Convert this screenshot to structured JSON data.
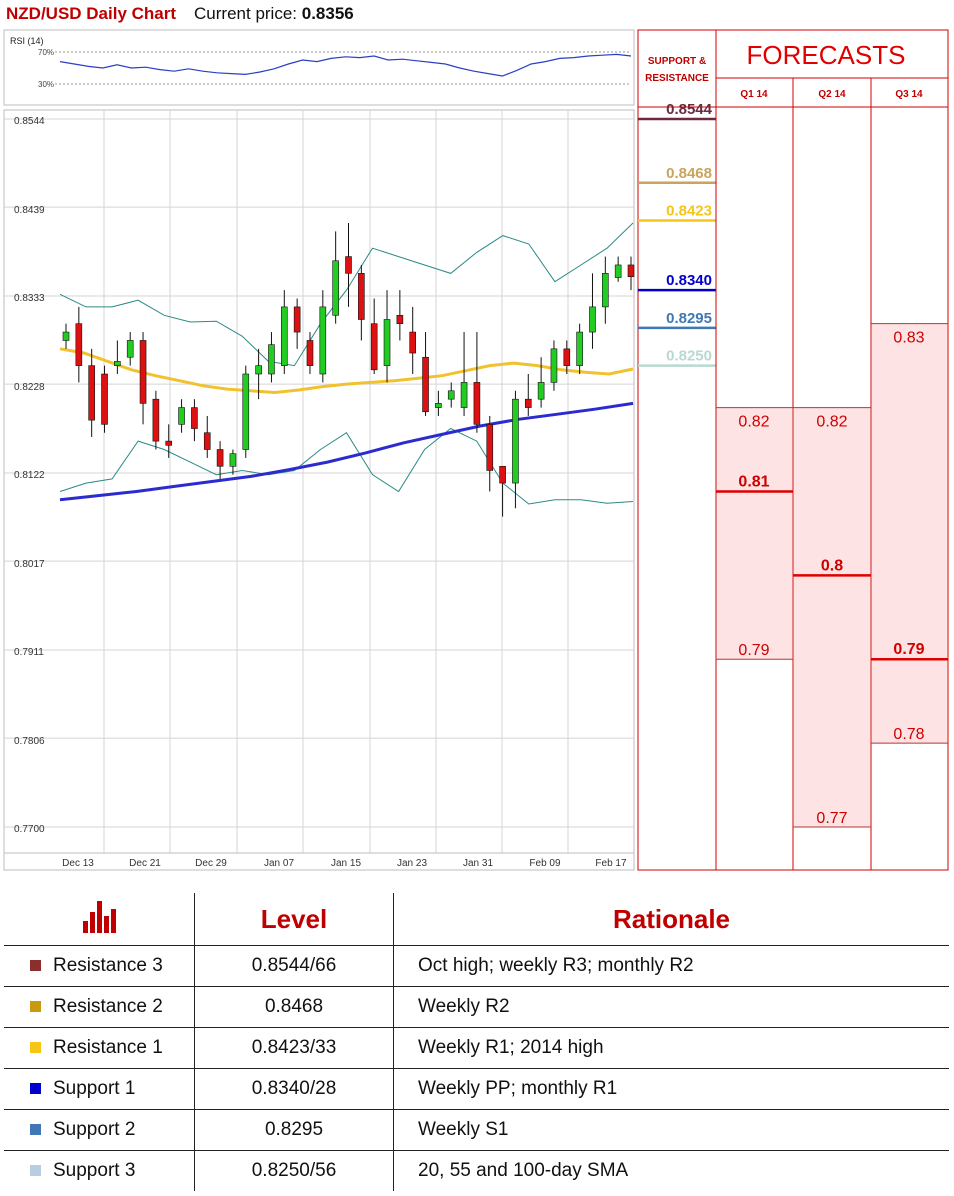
{
  "header": {
    "title": "NZD/USD Daily Chart",
    "price_label": "Current price:",
    "price_value": "0.8356"
  },
  "colors": {
    "red": "#c00000",
    "r3": "#8b2e2e",
    "r2": "#c89b0e",
    "r1": "#f5c518",
    "s1": "#0000cc",
    "s2": "#3f78b5",
    "s3": "#b8cde2",
    "sma_short": "#f2c12e",
    "sma_long": "#2b2bd0",
    "band": "#2a8a86"
  },
  "chart_data": {
    "type": "candlestick",
    "y_ticks": [
      "0.8544",
      "0.8439",
      "0.8333",
      "0.8228",
      "0.8122",
      "0.8017",
      "0.7911",
      "0.7806",
      "0.7700"
    ],
    "x_ticks": [
      "Dec 13",
      "Dec 21",
      "Dec 29",
      "Jan 07",
      "Jan 15",
      "Jan 23",
      "Jan 31",
      "Feb 09",
      "Feb 17"
    ],
    "ylim": [
      0.77,
      0.8544
    ],
    "rsi": {
      "label": "RSI (14)",
      "levels": [
        "70%",
        "30%"
      ],
      "values": [
        58,
        55,
        52,
        50,
        54,
        50,
        51,
        48,
        46,
        49,
        46,
        44,
        43,
        42,
        45,
        49,
        55,
        60,
        58,
        62,
        64,
        63,
        65,
        60,
        61,
        59,
        57,
        55,
        50,
        46,
        43,
        40,
        47,
        55,
        58,
        62,
        63,
        65,
        66,
        67,
        65
      ]
    },
    "candles": [
      [
        0.828,
        0.829,
        0.827,
        0.83
      ],
      [
        0.83,
        0.825,
        0.823,
        0.832
      ],
      [
        0.825,
        0.8185,
        0.8165,
        0.827
      ],
      [
        0.824,
        0.818,
        0.817,
        0.825
      ],
      [
        0.825,
        0.8255,
        0.824,
        0.828
      ],
      [
        0.826,
        0.828,
        0.825,
        0.829
      ],
      [
        0.828,
        0.8205,
        0.818,
        0.829
      ],
      [
        0.821,
        0.816,
        0.815,
        0.822
      ],
      [
        0.816,
        0.8155,
        0.814,
        0.818
      ],
      [
        0.818,
        0.82,
        0.817,
        0.821
      ],
      [
        0.82,
        0.8175,
        0.816,
        0.821
      ],
      [
        0.817,
        0.815,
        0.814,
        0.819
      ],
      [
        0.815,
        0.813,
        0.8115,
        0.816
      ],
      [
        0.813,
        0.8145,
        0.812,
        0.815
      ],
      [
        0.815,
        0.824,
        0.814,
        0.825
      ],
      [
        0.824,
        0.825,
        0.821,
        0.827
      ],
      [
        0.824,
        0.8275,
        0.823,
        0.829
      ],
      [
        0.825,
        0.832,
        0.824,
        0.834
      ],
      [
        0.832,
        0.829,
        0.827,
        0.833
      ],
      [
        0.828,
        0.825,
        0.824,
        0.829
      ],
      [
        0.824,
        0.832,
        0.823,
        0.834
      ],
      [
        0.831,
        0.8375,
        0.83,
        0.841
      ],
      [
        0.838,
        0.836,
        0.832,
        0.842
      ],
      [
        0.836,
        0.8305,
        0.828,
        0.837
      ],
      [
        0.83,
        0.8245,
        0.824,
        0.833
      ],
      [
        0.825,
        0.8305,
        0.823,
        0.834
      ],
      [
        0.831,
        0.83,
        0.828,
        0.834
      ],
      [
        0.829,
        0.8265,
        0.824,
        0.832
      ],
      [
        0.826,
        0.8195,
        0.819,
        0.829
      ],
      [
        0.82,
        0.8205,
        0.819,
        0.822
      ],
      [
        0.821,
        0.822,
        0.82,
        0.823
      ],
      [
        0.82,
        0.823,
        0.819,
        0.829
      ],
      [
        0.823,
        0.818,
        0.817,
        0.829
      ],
      [
        0.818,
        0.8125,
        0.81,
        0.819
      ],
      [
        0.813,
        0.811,
        0.807,
        0.813
      ],
      [
        0.811,
        0.821,
        0.808,
        0.822
      ],
      [
        0.821,
        0.82,
        0.819,
        0.824
      ],
      [
        0.821,
        0.823,
        0.82,
        0.826
      ],
      [
        0.823,
        0.827,
        0.822,
        0.828
      ],
      [
        0.827,
        0.825,
        0.824,
        0.828
      ],
      [
        0.825,
        0.829,
        0.824,
        0.83
      ],
      [
        0.829,
        0.832,
        0.827,
        0.836
      ],
      [
        0.832,
        0.836,
        0.83,
        0.838
      ],
      [
        0.8355,
        0.837,
        0.835,
        0.838
      ],
      [
        0.837,
        0.8356,
        0.834,
        0.838
      ]
    ],
    "sma_short": [
      0.827,
      0.8265,
      0.8255,
      0.8245,
      0.8238,
      0.8232,
      0.8226,
      0.8222,
      0.822,
      0.8218,
      0.8221,
      0.8225,
      0.8228,
      0.823,
      0.8232,
      0.8235,
      0.8238,
      0.8244,
      0.825,
      0.8253,
      0.825,
      0.8245,
      0.8242,
      0.824,
      0.8246
    ],
    "sma_long": [
      0.809,
      0.8095,
      0.81,
      0.8106,
      0.8112,
      0.8118,
      0.8126,
      0.8135,
      0.8146,
      0.8158,
      0.8168,
      0.8178,
      0.8186,
      0.8192,
      0.8198,
      0.8205
    ],
    "band_upper": [
      0.8335,
      0.832,
      0.832,
      0.8328,
      0.831,
      0.8302,
      0.8303,
      0.8285,
      0.8255,
      0.825,
      0.83,
      0.834,
      0.839,
      0.838,
      0.837,
      0.836,
      0.8385,
      0.8405,
      0.8395,
      0.835,
      0.837,
      0.839,
      0.842
    ],
    "band_lower": [
      0.81,
      0.811,
      0.8115,
      0.816,
      0.815,
      0.8135,
      0.812,
      0.8125,
      0.812,
      0.8125,
      0.815,
      0.817,
      0.812,
      0.81,
      0.815,
      0.8175,
      0.816,
      0.811,
      0.8085,
      0.809,
      0.809,
      0.8086,
      0.8088
    ]
  },
  "support_resistance": {
    "title": "SUPPORT & RESISTANCE",
    "levels": [
      {
        "value": "0.8544",
        "y": 0.8544,
        "color": "#6b2a3d"
      },
      {
        "value": "0.8468",
        "y": 0.8468,
        "color": "#c9a45a"
      },
      {
        "value": "0.8423",
        "y": 0.8423,
        "color": "#f5c518"
      },
      {
        "value": "0.8340",
        "y": 0.834,
        "color": "#0000cc"
      },
      {
        "value": "0.8295",
        "y": 0.8295,
        "color": "#3f78b5"
      },
      {
        "value": "0.8250",
        "y": 0.825,
        "color": "#b8d9d0"
      }
    ]
  },
  "forecasts": {
    "title": "FORECASTS",
    "columns": [
      {
        "label": "Q1 14",
        "high": "0.82",
        "mid": "0.81",
        "low": "0.79",
        "y_high": 0.82,
        "y_mid": 0.81,
        "y_low": 0.79
      },
      {
        "label": "Q2 14",
        "high": "0.82",
        "mid": "0.8",
        "low": "0.77",
        "y_high": 0.82,
        "y_mid": 0.8,
        "y_low": 0.77
      },
      {
        "label": "Q3 14",
        "high": "0.83",
        "mid": "0.79",
        "low": "0.78",
        "y_high": 0.83,
        "y_mid": 0.79,
        "y_low": 0.78
      }
    ]
  },
  "table": {
    "headers": {
      "level": "Level",
      "rationale": "Rationale"
    },
    "rows": [
      {
        "name": "Resistance 3",
        "level": "0.8544/66",
        "rationale": "Oct high; weekly R3; monthly R2",
        "color": "#8b2e2e"
      },
      {
        "name": "Resistance 2",
        "level": "0.8468",
        "rationale": "Weekly R2",
        "color": "#c89b0e"
      },
      {
        "name": "Resistance 1",
        "level": "0.8423/33",
        "rationale": "Weekly R1; 2014 high",
        "color": "#f5c518"
      },
      {
        "name": "Support 1",
        "level": "0.8340/28",
        "rationale": "Weekly PP; monthly R1",
        "color": "#0000cc"
      },
      {
        "name": "Support 2",
        "level": "0.8295",
        "rationale": "Weekly S1",
        "color": "#3f78b5"
      },
      {
        "name": "Support 3",
        "level": "0.8250/56",
        "rationale": "20, 55 and 100-day SMA",
        "color": "#b8cde2"
      }
    ]
  }
}
